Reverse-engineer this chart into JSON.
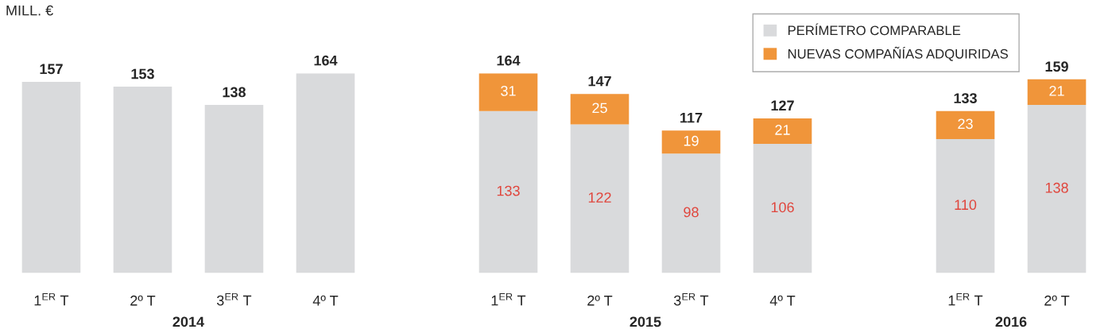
{
  "chart_data": {
    "type": "bar",
    "ylabel": "MILL. €",
    "stacked": true,
    "legend": "top right",
    "categories": [
      "1$^{ER}$ T",
      "2º T",
      "3$^{ER}$ T",
      "4º T",
      null,
      "1$^{ER}$ T",
      "2º T",
      "3$^{ER}$ T",
      "4º T",
      null,
      "1$^{ER}$ T",
      "2º T"
    ],
    "series": [
      {
        "name": "PERÍMETRO COMPARABLE",
        "color": "#d9dadc",
        "values": [
          157,
          153,
          138,
          164,
          null,
          133,
          122,
          98,
          106,
          null,
          110,
          138
        ],
        "value_labels": [
          null,
          null,
          null,
          null,
          null,
          "133",
          "122",
          "98",
          "106",
          null,
          "110",
          "138"
        ]
      },
      {
        "name": "NUEVAS COMPAÑÍAS ADQUIRIDAS",
        "color": "#f0953a",
        "values": [
          null,
          null,
          null,
          null,
          null,
          31,
          25,
          19,
          21,
          null,
          23,
          21
        ],
        "data_labels": true
      }
    ],
    "totals": [
      "157",
      "153",
      "138",
      "164",
      null,
      "164",
      "147",
      "117",
      "127",
      null,
      "133",
      "159"
    ],
    "annotations": [
      "2014",
      "2015",
      "2016"
    ]
  }
}
